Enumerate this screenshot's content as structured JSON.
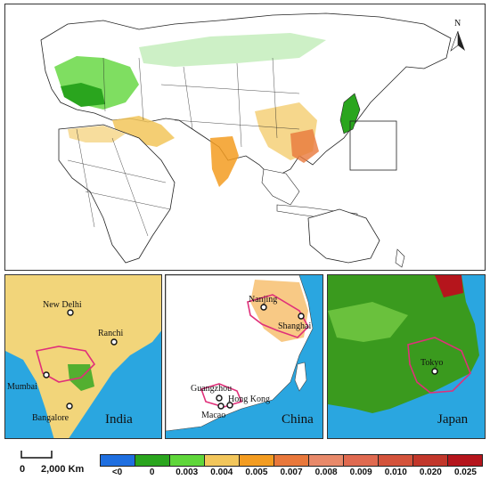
{
  "north_arrow": {
    "label": "N",
    "icon": "north-arrow-icon"
  },
  "insets": {
    "india": {
      "label": "India",
      "cities": [
        "New Delhi",
        "Ranchi",
        "Mumbai",
        "Bangalore"
      ]
    },
    "china": {
      "label": "China",
      "cities": [
        "Nanjing",
        "Shanghai",
        "Guangzhou",
        "Hong Kong",
        "Macao"
      ]
    },
    "japan": {
      "label": "Japan",
      "cities": [
        "Tokyo"
      ]
    }
  },
  "scale_bar": {
    "start": "0",
    "end": "2,000 Km"
  },
  "legend": {
    "labels": [
      "<0",
      "0",
      "0.003",
      "0.004",
      "0.005",
      "0.007",
      "0.008",
      "0.009",
      "0.010",
      "0.020",
      "0.025"
    ],
    "colors": [
      "#1f6fe0",
      "#2aa51e",
      "#5fd63a",
      "#f2c65b",
      "#f39c21",
      "#e9783b",
      "#e8896a",
      "#e06a50",
      "#d4533b",
      "#c2372b",
      "#b5151c"
    ]
  },
  "colors": {
    "ocean": "#2aa6e0",
    "land_white": "#ffffff",
    "urban_outline": "#e0307a",
    "green_dense": "#3a9a1e",
    "green_light": "#7fd24a"
  }
}
